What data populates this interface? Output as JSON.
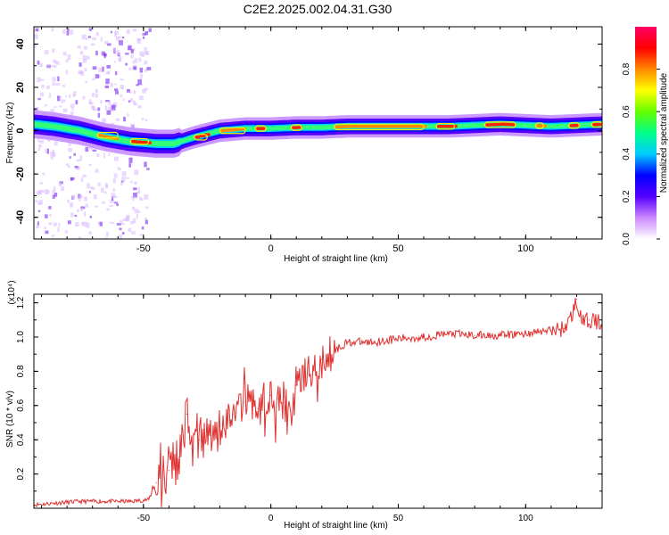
{
  "title": "C2E2.2025.002.04.31.G30",
  "chart_data": [
    {
      "type": "heatmap",
      "title": "C2E2.2025.002.04.31.G30",
      "xlabel": "Height of straight line (km)",
      "ylabel": "Frequency (Hz)",
      "xlim": [
        -93,
        130
      ],
      "ylim": [
        -50,
        48
      ],
      "x_ticks": [
        -50,
        0,
        50,
        100
      ],
      "y_ticks": [
        -40,
        -20,
        0,
        20,
        40
      ],
      "colorbar": {
        "label": "Normalized spectral amplitude",
        "range": [
          0,
          1
        ],
        "ticks": [
          "0.0",
          "0.2",
          "0.4",
          "0.6",
          "0.8"
        ],
        "colors": [
          "#ffffff",
          "#cc88ff",
          "#5500ff",
          "#0000ff",
          "#00ccff",
          "#00ff88",
          "#66ff00",
          "#ffff00",
          "#ff8800",
          "#ff0000",
          "#ff0066"
        ]
      },
      "ridge": {
        "x": [
          -93,
          -85,
          -75,
          -65,
          -55,
          -45,
          -38,
          -30,
          -20,
          -10,
          0,
          10,
          20,
          30,
          40,
          50,
          60,
          70,
          80,
          90,
          100,
          110,
          120,
          130
        ],
        "frequency": [
          3,
          2,
          0,
          -3,
          -5,
          -6,
          -6,
          -3,
          0,
          1,
          1,
          1.5,
          1.5,
          2,
          2,
          2,
          2,
          2,
          2.5,
          3,
          2.5,
          2,
          2.5,
          3
        ]
      }
    },
    {
      "type": "line",
      "xlabel": "Height of straight line (km)",
      "ylabel": "SNR (10 * v/v)",
      "y_multiplier": "(x10⁴)",
      "xlim": [
        -93,
        130
      ],
      "ylim": [
        0,
        1.25
      ],
      "x_ticks": [
        -50,
        0,
        50,
        100
      ],
      "y_ticks": [
        0.2,
        0.4,
        0.6,
        0.8,
        1.0,
        1.2
      ],
      "series": [
        {
          "color": "#e03030",
          "x": [
            -93,
            -85,
            -75,
            -65,
            -55,
            -48,
            -45,
            -40,
            -36,
            -33,
            -31,
            -28,
            -24,
            -20,
            -15,
            -10,
            -5,
            0,
            5,
            8,
            10,
            15,
            20,
            25,
            30,
            40,
            50,
            60,
            70,
            80,
            90,
            100,
            110,
            115,
            118,
            120,
            122,
            125,
            130
          ],
          "values": [
            0.02,
            0.03,
            0.04,
            0.04,
            0.04,
            0.05,
            0.15,
            0.22,
            0.3,
            0.55,
            0.35,
            0.4,
            0.45,
            0.48,
            0.55,
            0.62,
            0.58,
            0.66,
            0.65,
            0.5,
            0.72,
            0.78,
            0.87,
            0.92,
            0.97,
            0.97,
            0.99,
            1.0,
            1.02,
            1.01,
            1.01,
            1.02,
            1.04,
            1.05,
            1.12,
            1.22,
            1.08,
            1.1,
            1.08
          ]
        }
      ]
    }
  ]
}
